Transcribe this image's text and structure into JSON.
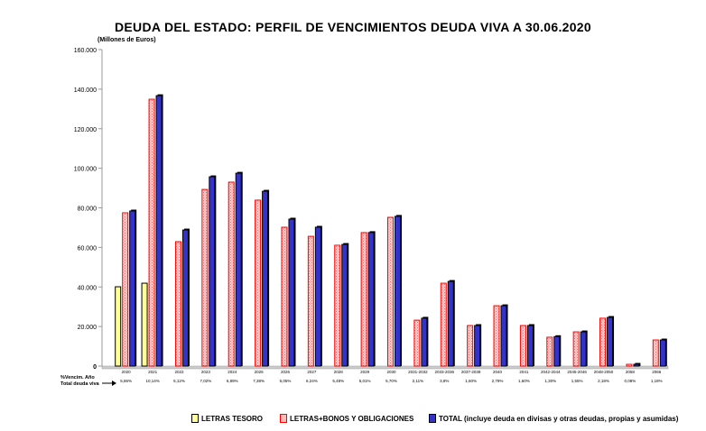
{
  "chart_data": {
    "type": "bar",
    "title": "DEUDA DEL ESTADO: PERFIL DE VENCIMIENTOS DEUDA VIVA A 30.06.2020",
    "ylabel": "(Millones de Euros)",
    "xlabel": "",
    "ylim": [
      0,
      160000
    ],
    "yticks": [
      "0",
      "20.000",
      "40.000",
      "60.000",
      "80.000",
      "100.000",
      "120.000",
      "140.000",
      "160.000"
    ],
    "grid": false,
    "legend_position": "bottom",
    "categories": [
      "2020",
      "2021",
      "2022",
      "2023",
      "2024",
      "2025",
      "2026",
      "2027",
      "2028",
      "2029",
      "2030",
      "2031-2032",
      "2033-2036",
      "2037-2039",
      "2040",
      "2041",
      "2042-2044",
      "2045-2046",
      "2048-2050",
      "2058",
      "2066"
    ],
    "row_label_1": "%Vencim. Año",
    "row_label_2": "Total deuda viva",
    "percent_row": [
      "5,86%",
      "10,14%",
      "5,12%",
      "7,02%",
      "6,89%",
      "7,38%",
      "6,05%",
      "6,24%",
      "5,48%",
      "5,01%",
      "5,70%",
      "2,11%",
      "3,8%",
      "1,60%",
      "2,79%",
      "1,60%",
      "1,30%",
      "1,55%",
      "2,18%",
      "0,08%",
      "1,18%"
    ],
    "series": [
      {
        "name": "LETRAS TESORO",
        "color": "#ffff99",
        "values": [
          40100,
          41900,
          0,
          0,
          0,
          0,
          0,
          0,
          0,
          0,
          0,
          0,
          0,
          0,
          0,
          0,
          0,
          0,
          0,
          0,
          0
        ]
      },
      {
        "name": "LETRAS+BONOS Y OBLIGACIONES",
        "color": "#ff9999",
        "values": [
          77500,
          134900,
          62900,
          89300,
          93000,
          83900,
          70200,
          65600,
          61100,
          67500,
          75200,
          23200,
          41900,
          20500,
          30500,
          20500,
          14600,
          17300,
          24200,
          900,
          13200
        ]
      },
      {
        "name": "TOTAL (incluye deuda en divisas y otras deudas, propias y asumidas)",
        "color": "#3333cc",
        "values": [
          78400,
          136700,
          68800,
          95700,
          97500,
          88400,
          74300,
          70200,
          61500,
          67500,
          75700,
          24200,
          42800,
          20500,
          30500,
          20500,
          14900,
          17300,
          24600,
          900,
          13200
        ]
      }
    ]
  }
}
